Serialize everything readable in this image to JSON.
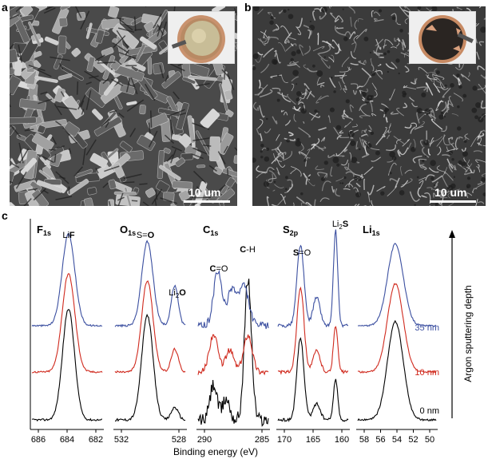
{
  "panels": {
    "a": {
      "letter": "a",
      "scale": "10 um"
    },
    "b": {
      "letter": "b",
      "scale": "10 um"
    },
    "c": {
      "letter": "c"
    }
  },
  "xps": {
    "xlabel": "Binding energy (eV)",
    "depth_axis_label": "Argon sputtering depth",
    "depth_labels": [
      {
        "text": "35 nm",
        "color": "#3b4fa0"
      },
      {
        "text": "10 nm",
        "color": "#d02a1e"
      },
      {
        "text": "0 nm",
        "color": "#000000"
      }
    ],
    "series_colors": [
      "#000000",
      "#d02a1e",
      "#3b4fa0"
    ],
    "subpanels": [
      {
        "element": "F",
        "orbital": "1s",
        "ticks": [
          "686",
          "684",
          "682"
        ],
        "labels": [
          {
            "pre": "Li",
            "bold": "F",
            "post": ""
          }
        ]
      },
      {
        "element": "O",
        "orbital": "1s",
        "ticks": [
          "532",
          "528"
        ],
        "labels": [
          {
            "pre": "S=",
            "bold": "O",
            "post": ""
          },
          {
            "pre": "Li",
            "sub": "2",
            "bold": "O",
            "post": ""
          }
        ]
      },
      {
        "element": "C",
        "orbital": "1s",
        "ticks": [
          "290",
          "285"
        ],
        "labels": [
          {
            "pre": "",
            "bold": "C",
            "post": "=O"
          },
          {
            "pre": "",
            "bold": "C",
            "post": "-H"
          }
        ]
      },
      {
        "element": "S",
        "orbital": "2p",
        "ticks": [
          "170",
          "165",
          "160"
        ],
        "labels": [
          {
            "pre": "",
            "bold": "S",
            "post": "=O"
          },
          {
            "pre": "Li",
            "sub": "2",
            "bold": "S",
            "post": ""
          }
        ]
      },
      {
        "element": "Li",
        "orbital": "1s",
        "ticks": [
          "58",
          "56",
          "54",
          "52",
          "50"
        ],
        "labels": []
      }
    ]
  }
}
